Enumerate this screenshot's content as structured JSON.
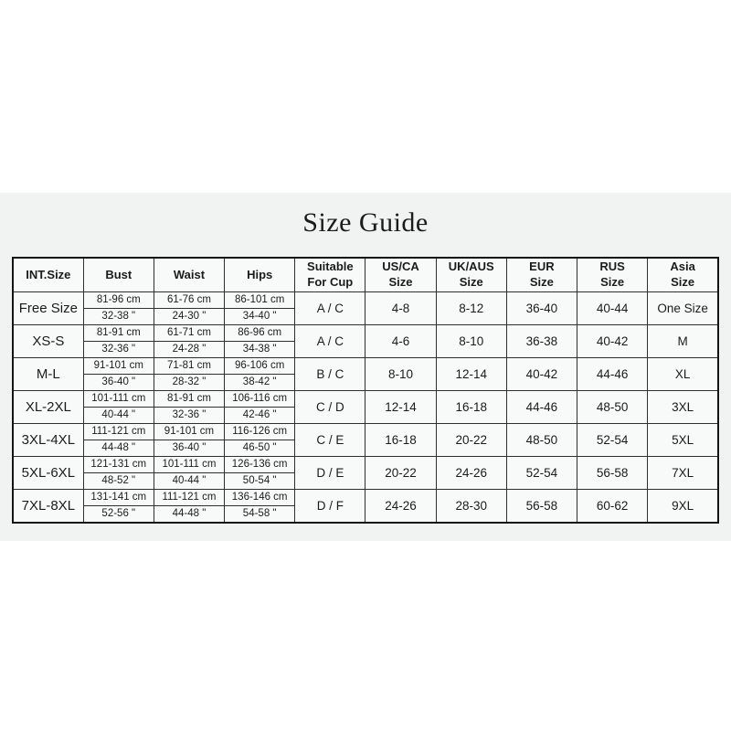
{
  "page": {
    "background": "#ffffff",
    "panel_background": "#f1f3f2",
    "table_background": "#f8faf9",
    "border_color": "#2f2f2f",
    "text_color": "#1b1b1b"
  },
  "title": "Size Guide",
  "table": {
    "columns": [
      {
        "id": "int_size",
        "lines": [
          "INT.Size"
        ]
      },
      {
        "id": "bust",
        "lines": [
          "Bust"
        ]
      },
      {
        "id": "waist",
        "lines": [
          "Waist"
        ]
      },
      {
        "id": "hips",
        "lines": [
          "Hips"
        ]
      },
      {
        "id": "cup",
        "lines": [
          "Suitable",
          "For Cup"
        ]
      },
      {
        "id": "us_ca",
        "lines": [
          "US/CA",
          "Size"
        ]
      },
      {
        "id": "uk_aus",
        "lines": [
          "UK/AUS",
          "Size"
        ]
      },
      {
        "id": "eur",
        "lines": [
          "EUR",
          "Size"
        ]
      },
      {
        "id": "rus",
        "lines": [
          "RUS",
          "Size"
        ]
      },
      {
        "id": "asia",
        "lines": [
          "Asia",
          "Size"
        ]
      }
    ],
    "rows": [
      {
        "int_size": "Free Size",
        "bust": {
          "cm": "81-96 cm",
          "in": "32-38 \""
        },
        "waist": {
          "cm": "61-76 cm",
          "in": "24-30 \""
        },
        "hips": {
          "cm": "86-101 cm",
          "in": "34-40 \""
        },
        "cup": "A / C",
        "us_ca": "4-8",
        "uk_aus": "8-12",
        "eur": "36-40",
        "rus": "40-44",
        "asia": "One Size"
      },
      {
        "int_size": "XS-S",
        "bust": {
          "cm": "81-91 cm",
          "in": "32-36 \""
        },
        "waist": {
          "cm": "61-71 cm",
          "in": "24-28 \""
        },
        "hips": {
          "cm": "86-96 cm",
          "in": "34-38 \""
        },
        "cup": "A / C",
        "us_ca": "4-6",
        "uk_aus": "8-10",
        "eur": "36-38",
        "rus": "40-42",
        "asia": "M"
      },
      {
        "int_size": "M-L",
        "bust": {
          "cm": "91-101 cm",
          "in": "36-40 \""
        },
        "waist": {
          "cm": "71-81 cm",
          "in": "28-32 \""
        },
        "hips": {
          "cm": "96-106 cm",
          "in": "38-42 \""
        },
        "cup": "B / C",
        "us_ca": "8-10",
        "uk_aus": "12-14",
        "eur": "40-42",
        "rus": "44-46",
        "asia": "XL"
      },
      {
        "int_size": "XL-2XL",
        "bust": {
          "cm": "101-111 cm",
          "in": "40-44 \""
        },
        "waist": {
          "cm": "81-91 cm",
          "in": "32-36 \""
        },
        "hips": {
          "cm": "106-116 cm",
          "in": "42-46 \""
        },
        "cup": "C / D",
        "us_ca": "12-14",
        "uk_aus": "16-18",
        "eur": "44-46",
        "rus": "48-50",
        "asia": "3XL"
      },
      {
        "int_size": "3XL-4XL",
        "bust": {
          "cm": "111-121 cm",
          "in": "44-48 \""
        },
        "waist": {
          "cm": "91-101 cm",
          "in": "36-40 \""
        },
        "hips": {
          "cm": "116-126 cm",
          "in": "46-50 \""
        },
        "cup": "C / E",
        "us_ca": "16-18",
        "uk_aus": "20-22",
        "eur": "48-50",
        "rus": "52-54",
        "asia": "5XL"
      },
      {
        "int_size": "5XL-6XL",
        "bust": {
          "cm": "121-131 cm",
          "in": "48-52 \""
        },
        "waist": {
          "cm": "101-111 cm",
          "in": "40-44 \""
        },
        "hips": {
          "cm": "126-136 cm",
          "in": "50-54 \""
        },
        "cup": "D / E",
        "us_ca": "20-22",
        "uk_aus": "24-26",
        "eur": "52-54",
        "rus": "56-58",
        "asia": "7XL"
      },
      {
        "int_size": "7XL-8XL",
        "bust": {
          "cm": "131-141 cm",
          "in": "52-56 \""
        },
        "waist": {
          "cm": "111-121 cm",
          "in": "44-48 \""
        },
        "hips": {
          "cm": "136-146 cm",
          "in": "54-58 \""
        },
        "cup": "D / F",
        "us_ca": "24-26",
        "uk_aus": "28-30",
        "eur": "56-58",
        "rus": "60-62",
        "asia": "9XL"
      }
    ]
  }
}
